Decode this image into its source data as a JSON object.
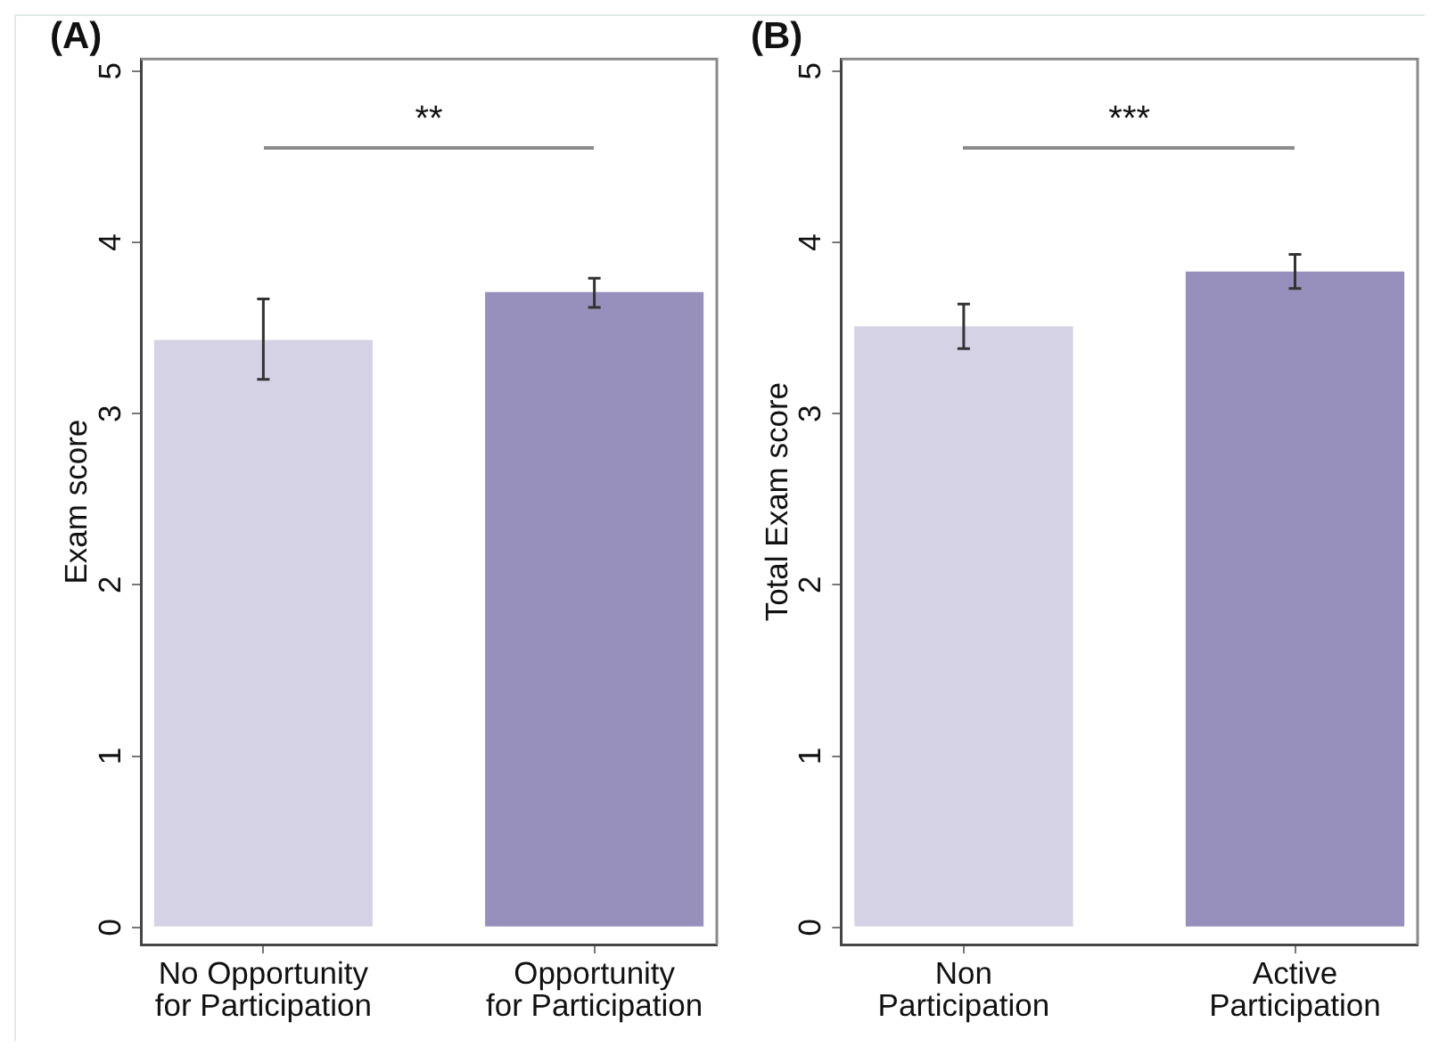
{
  "chart_data": [
    {
      "type": "bar",
      "title": "(A)",
      "ylabel": "Exam score",
      "categories": [
        "No Opportunity for Participation",
        "Opportunity for Participation"
      ],
      "values": [
        3.43,
        3.71
      ],
      "colors": [
        "#d5d2e6",
        "#9890bc"
      ],
      "errors": [
        [
          3.2,
          3.67
        ],
        [
          3.62,
          3.79
        ]
      ],
      "ylim": [
        -0.1,
        5.07
      ],
      "yticks": [
        0,
        1,
        2,
        3,
        4,
        5
      ],
      "annotations": [
        "**"
      ]
    },
    {
      "type": "bar",
      "title": "(B)",
      "ylabel": "Total Exam score",
      "categories": [
        "Non Participation",
        "Active Participation"
      ],
      "values": [
        3.51,
        3.83
      ],
      "colors": [
        "#d5d2e6",
        "#9890bc"
      ],
      "errors": [
        [
          3.38,
          3.64
        ],
        [
          3.73,
          3.93
        ]
      ],
      "ylim": [
        -0.1,
        5.07
      ],
      "yticks": [
        0,
        1,
        2,
        3,
        4,
        5
      ],
      "annotations": [
        "***"
      ]
    }
  ]
}
